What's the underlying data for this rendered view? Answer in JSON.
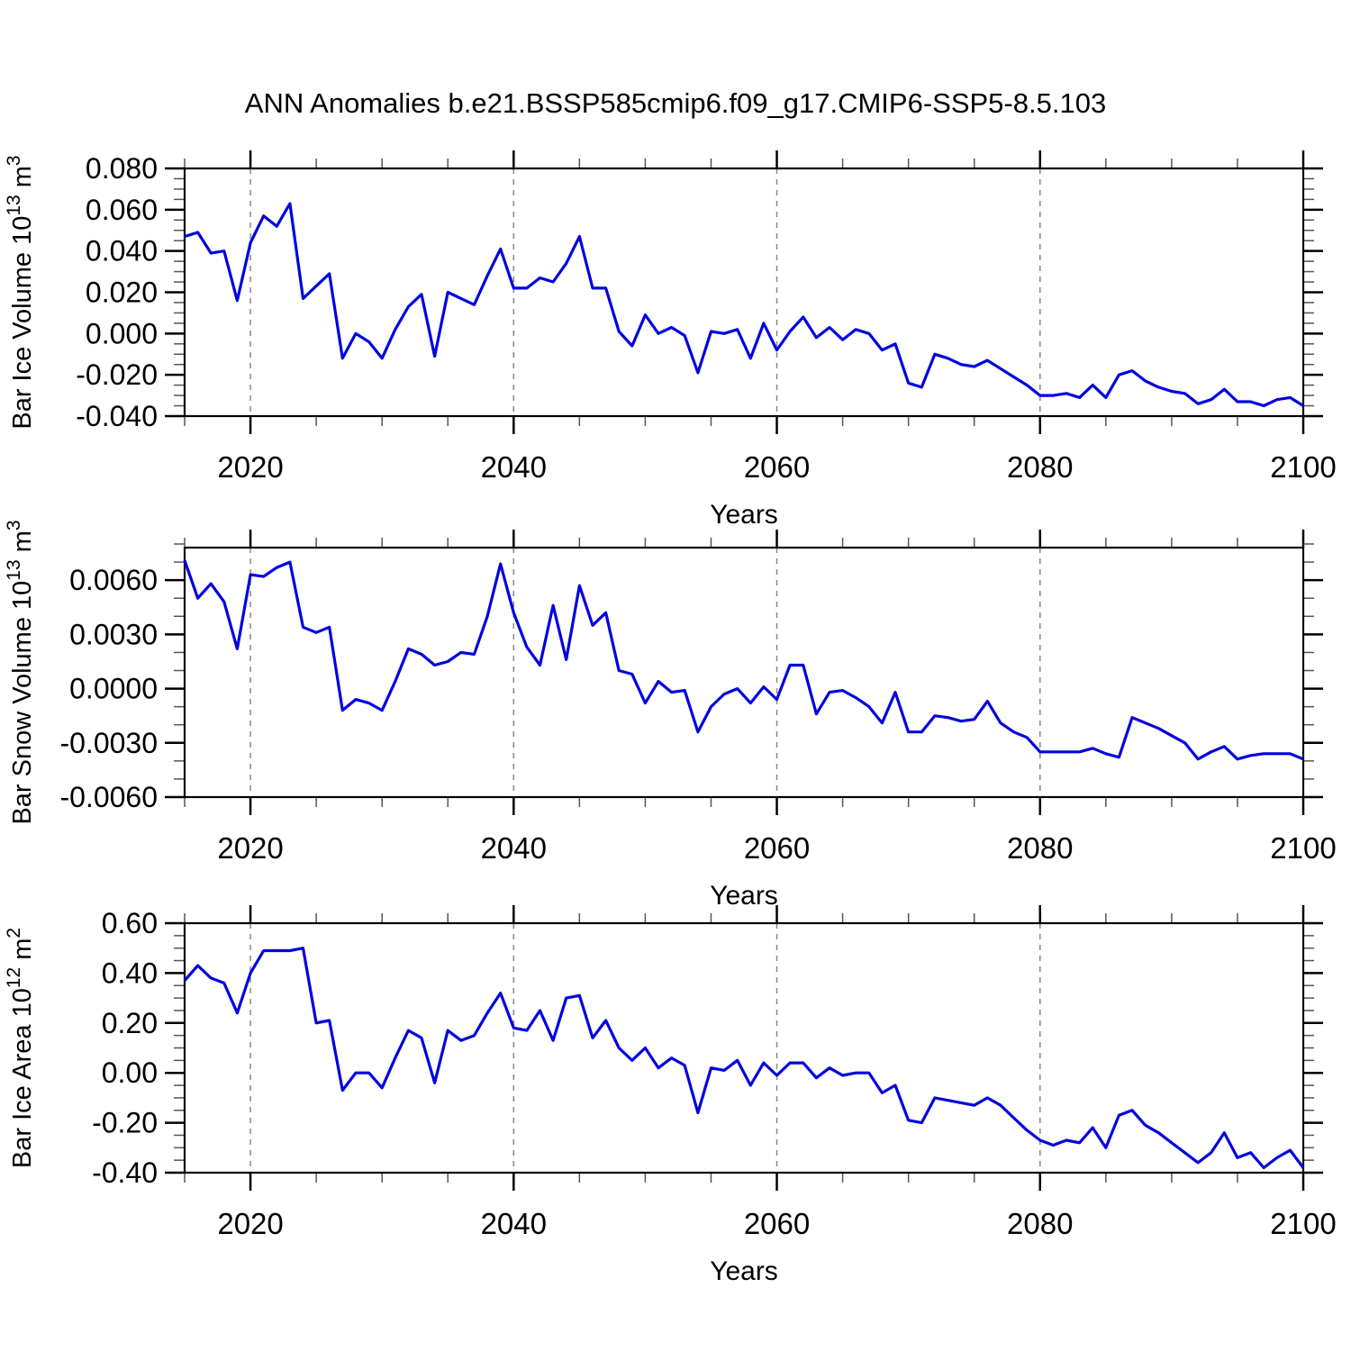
{
  "title": "ANN Anomalies b.e21.BSSP585cmip6.f09_g17.CMIP6-SSP5-8.5.103",
  "line_color": "#0202e0",
  "gridline_color": "#888888",
  "frame_color": "#000000",
  "years": [
    2015,
    2016,
    2017,
    2018,
    2019,
    2020,
    2021,
    2022,
    2023,
    2024,
    2025,
    2026,
    2027,
    2028,
    2029,
    2030,
    2031,
    2032,
    2033,
    2034,
    2035,
    2036,
    2037,
    2038,
    2039,
    2040,
    2041,
    2042,
    2043,
    2044,
    2045,
    2046,
    2047,
    2048,
    2049,
    2050,
    2051,
    2052,
    2053,
    2054,
    2055,
    2056,
    2057,
    2058,
    2059,
    2060,
    2061,
    2062,
    2063,
    2064,
    2065,
    2066,
    2067,
    2068,
    2069,
    2070,
    2071,
    2072,
    2073,
    2074,
    2075,
    2076,
    2077,
    2078,
    2079,
    2080,
    2081,
    2082,
    2083,
    2084,
    2085,
    2086,
    2087,
    2088,
    2089,
    2090,
    2091,
    2092,
    2093,
    2094,
    2095,
    2096,
    2097,
    2098,
    2099,
    2100
  ],
  "x_axis": {
    "label": "Years",
    "xlim": [
      2015,
      2100
    ],
    "major_ticks": [
      2020,
      2040,
      2060,
      2080,
      2100
    ],
    "minor_step": 5,
    "gridline_years": [
      2020,
      2040,
      2060,
      2080
    ]
  },
  "chart_data": [
    {
      "id": "ice-volume",
      "type": "line",
      "title": "ANN Anomalies b.e21.BSSP585cmip6.f09_g17.CMIP6-SSP5-8.5.103",
      "xlabel": "Years",
      "ylabel": "Bar Ice Volume 10^13 m^3",
      "ylim": [
        -0.04,
        0.08
      ],
      "yticks": [
        0.08,
        0.06,
        0.04,
        0.02,
        0.0,
        -0.02,
        -0.04
      ],
      "y_decimals": 3,
      "y_minor_step": 0.005,
      "grid": "vertical-dashed",
      "legend": "none",
      "values": [
        0.047,
        0.049,
        0.039,
        0.04,
        0.016,
        0.044,
        0.057,
        0.052,
        0.063,
        0.017,
        0.023,
        0.029,
        -0.012,
        0.0,
        -0.004,
        -0.012,
        0.002,
        0.013,
        0.019,
        -0.011,
        0.02,
        0.017,
        0.014,
        0.028,
        0.041,
        0.022,
        0.022,
        0.027,
        0.025,
        0.034,
        0.047,
        0.022,
        0.022,
        0.001,
        -0.006,
        0.009,
        0.0,
        0.003,
        -0.001,
        -0.019,
        0.001,
        0.0,
        0.002,
        -0.012,
        0.005,
        -0.008,
        0.001,
        0.008,
        -0.002,
        0.003,
        -0.003,
        0.002,
        0.0,
        -0.008,
        -0.005,
        -0.024,
        -0.026,
        -0.01,
        -0.012,
        -0.015,
        -0.016,
        -0.013,
        -0.017,
        -0.021,
        -0.025,
        -0.03,
        -0.03,
        -0.029,
        -0.031,
        -0.025,
        -0.031,
        -0.02,
        -0.018,
        -0.023,
        -0.026,
        -0.028,
        -0.029,
        -0.034,
        -0.032,
        -0.027,
        -0.033,
        -0.033,
        -0.035,
        -0.032,
        -0.031,
        -0.035
      ]
    },
    {
      "id": "snow-volume",
      "type": "line",
      "xlabel": "Years",
      "ylabel": "Bar Snow Volume 10^13 m^3",
      "ylim": [
        -0.006,
        0.0078
      ],
      "yticks": [
        0.006,
        0.003,
        0.0,
        -0.003,
        -0.006
      ],
      "y_decimals": 4,
      "y_minor_step": 0.001,
      "grid": "vertical-dashed",
      "legend": "none",
      "values": [
        0.0071,
        0.005,
        0.0058,
        0.0048,
        0.0022,
        0.0063,
        0.0062,
        0.0067,
        0.007,
        0.0034,
        0.0031,
        0.0034,
        -0.0012,
        -0.0006,
        -0.0008,
        -0.0012,
        0.0004,
        0.0022,
        0.0019,
        0.0013,
        0.0015,
        0.002,
        0.0019,
        0.004,
        0.0069,
        0.0042,
        0.0023,
        0.0013,
        0.0046,
        0.0016,
        0.0057,
        0.0035,
        0.0042,
        0.001,
        0.0008,
        -0.0008,
        0.0004,
        -0.0002,
        -0.0001,
        -0.0024,
        -0.001,
        -0.0003,
        0.0,
        -0.0008,
        0.0001,
        -0.0006,
        0.0013,
        0.0013,
        -0.0014,
        -0.0002,
        -0.0001,
        -0.0005,
        -0.001,
        -0.0019,
        -0.0002,
        -0.0024,
        -0.0024,
        -0.0015,
        -0.0016,
        -0.0018,
        -0.0017,
        -0.0007,
        -0.0019,
        -0.0024,
        -0.0027,
        -0.0035,
        -0.0035,
        -0.0035,
        -0.0035,
        -0.0033,
        -0.0036,
        -0.0038,
        -0.0016,
        -0.0019,
        -0.0022,
        -0.0026,
        -0.003,
        -0.0039,
        -0.0035,
        -0.0032,
        -0.0039,
        -0.0037,
        -0.0036,
        -0.0036,
        -0.0036,
        -0.0039
      ]
    },
    {
      "id": "ice-area",
      "type": "line",
      "xlabel": "Years",
      "ylabel": "Bar Ice Area 10^12 m^2",
      "ylim": [
        -0.4,
        0.6
      ],
      "yticks": [
        0.6,
        0.4,
        0.2,
        0.0,
        -0.2,
        -0.4
      ],
      "y_decimals": 2,
      "y_minor_step": 0.05,
      "grid": "vertical-dashed",
      "legend": "none",
      "values": [
        0.37,
        0.43,
        0.38,
        0.36,
        0.24,
        0.4,
        0.49,
        0.49,
        0.49,
        0.5,
        0.2,
        0.21,
        -0.07,
        0.0,
        0.0,
        -0.06,
        0.06,
        0.17,
        0.14,
        -0.04,
        0.17,
        0.13,
        0.15,
        0.24,
        0.32,
        0.18,
        0.17,
        0.25,
        0.13,
        0.3,
        0.31,
        0.14,
        0.21,
        0.1,
        0.05,
        0.1,
        0.02,
        0.06,
        0.03,
        -0.16,
        0.02,
        0.01,
        0.05,
        -0.05,
        0.04,
        -0.01,
        0.04,
        0.04,
        -0.02,
        0.02,
        -0.01,
        0.0,
        0.0,
        -0.08,
        -0.05,
        -0.19,
        -0.2,
        -0.1,
        -0.11,
        -0.12,
        -0.13,
        -0.1,
        -0.13,
        -0.18,
        -0.23,
        -0.27,
        -0.29,
        -0.27,
        -0.28,
        -0.22,
        -0.3,
        -0.17,
        -0.15,
        -0.21,
        -0.24,
        -0.28,
        -0.32,
        -0.36,
        -0.32,
        -0.24,
        -0.34,
        -0.32,
        -0.38,
        -0.34,
        -0.31,
        -0.38
      ]
    }
  ]
}
